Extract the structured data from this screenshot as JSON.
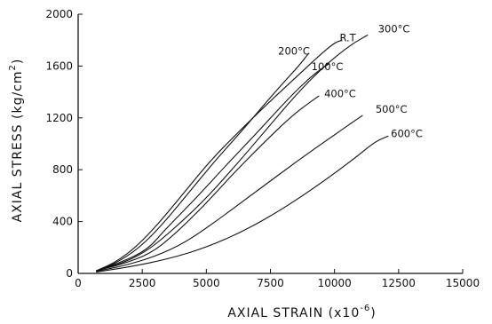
{
  "chart_data": {
    "type": "line",
    "title": "",
    "xlabel": "AXIAL STRAIN (x10",
    "xlabel_exp": "-6",
    "xlabel_close": ")",
    "ylabel": "AXIAL STRESS (kg/cm",
    "ylabel_exp": "2",
    "ylabel_close": ")",
    "xlim": [
      0,
      15000
    ],
    "ylim": [
      0,
      2000
    ],
    "x_ticks": [
      {
        "value": 0,
        "label": "0"
      },
      {
        "value": 2500,
        "label": "2500"
      },
      {
        "value": 5000,
        "label": "5000"
      },
      {
        "value": 7500,
        "label": "7500"
      },
      {
        "value": 10000,
        "label": "10000"
      },
      {
        "value": 12500,
        "label": "12500"
      },
      {
        "value": 15000,
        "label": "15000"
      }
    ],
    "y_ticks": [
      {
        "value": 0,
        "label": "0"
      },
      {
        "value": 400,
        "label": "400"
      },
      {
        "value": 800,
        "label": "800"
      },
      {
        "value": 1200,
        "label": "1200"
      },
      {
        "value": 1600,
        "label": "1600"
      },
      {
        "value": 2000,
        "label": "2000"
      }
    ],
    "grid": false,
    "legend": "none",
    "line_color": "#111111",
    "series": [
      {
        "name": "R.T",
        "label_at": [
          10200,
          1790
        ],
        "points": [
          [
            700,
            20
          ],
          [
            1500,
            90
          ],
          [
            2300,
            210
          ],
          [
            3200,
            400
          ],
          [
            4200,
            640
          ],
          [
            5200,
            880
          ],
          [
            6400,
            1120
          ],
          [
            7600,
            1350
          ],
          [
            8700,
            1550
          ],
          [
            9400,
            1680
          ],
          [
            10000,
            1780
          ],
          [
            10300,
            1800
          ]
        ]
      },
      {
        "name": "200°C",
        "label_at": [
          7800,
          1690
        ],
        "points": [
          [
            700,
            20
          ],
          [
            1500,
            80
          ],
          [
            2400,
            200
          ],
          [
            3300,
            380
          ],
          [
            4300,
            620
          ],
          [
            5300,
            860
          ],
          [
            6300,
            1080
          ],
          [
            7200,
            1290
          ],
          [
            8000,
            1470
          ],
          [
            8600,
            1600
          ],
          [
            9000,
            1700
          ]
        ]
      },
      {
        "name": "300°C",
        "label_at": [
          11700,
          1860
        ],
        "points": [
          [
            700,
            20
          ],
          [
            1600,
            70
          ],
          [
            2600,
            160
          ],
          [
            3600,
            320
          ],
          [
            4800,
            540
          ],
          [
            6000,
            800
          ],
          [
            7300,
            1100
          ],
          [
            8500,
            1380
          ],
          [
            9600,
            1600
          ],
          [
            10600,
            1760
          ],
          [
            11300,
            1840
          ]
        ]
      },
      {
        "name": "100°C",
        "label_at": [
          9100,
          1570
        ],
        "points": [
          [
            700,
            20
          ],
          [
            1600,
            80
          ],
          [
            2700,
            180
          ],
          [
            3400,
            340
          ],
          [
            4600,
            580
          ],
          [
            5700,
            820
          ],
          [
            7000,
            1090
          ],
          [
            8200,
            1350
          ],
          [
            9200,
            1540
          ],
          [
            9800,
            1620
          ]
        ]
      },
      {
        "name": "400°C",
        "label_at": [
          9600,
          1360
        ],
        "points": [
          [
            700,
            20
          ],
          [
            1700,
            70
          ],
          [
            2800,
            150
          ],
          [
            3700,
            290
          ],
          [
            4900,
            520
          ],
          [
            6000,
            760
          ],
          [
            7200,
            1000
          ],
          [
            8300,
            1210
          ],
          [
            9100,
            1330
          ],
          [
            9400,
            1370
          ]
        ]
      },
      {
        "name": "500°C",
        "label_at": [
          11600,
          1240
        ],
        "points": [
          [
            700,
            15
          ],
          [
            1800,
            60
          ],
          [
            3000,
            130
          ],
          [
            4200,
            240
          ],
          [
            5500,
            420
          ],
          [
            7000,
            640
          ],
          [
            8500,
            860
          ],
          [
            10000,
            1070
          ],
          [
            11100,
            1220
          ]
        ]
      },
      {
        "name": "600°C",
        "label_at": [
          12200,
          1050
        ],
        "points": [
          [
            700,
            10
          ],
          [
            2000,
            50
          ],
          [
            3500,
            110
          ],
          [
            5000,
            200
          ],
          [
            6500,
            330
          ],
          [
            8000,
            500
          ],
          [
            9500,
            700
          ],
          [
            10800,
            890
          ],
          [
            11600,
            1020
          ],
          [
            12100,
            1060
          ]
        ]
      }
    ]
  }
}
